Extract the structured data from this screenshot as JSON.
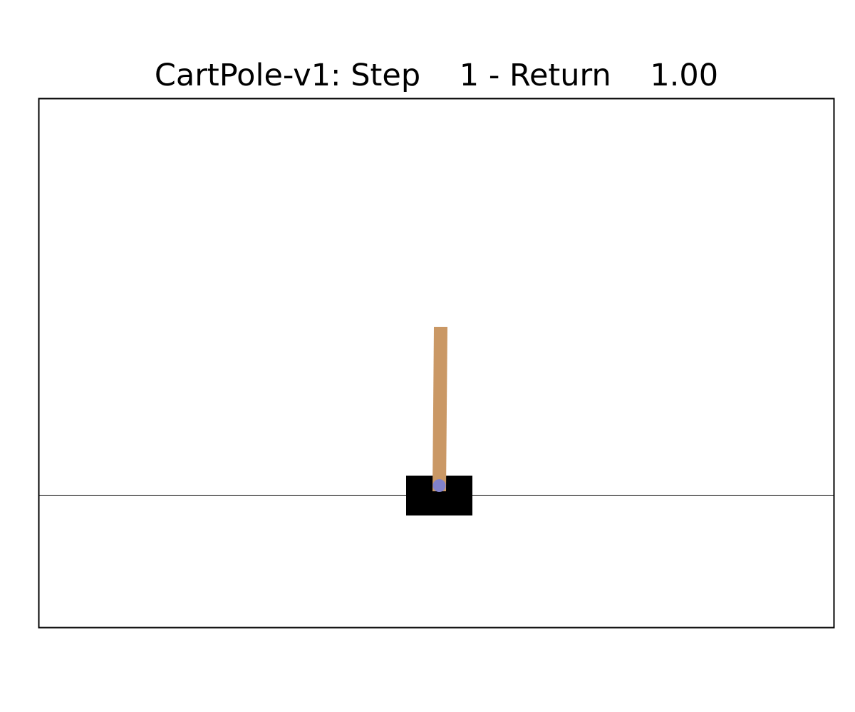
{
  "env_name": "CartPole-v1",
  "step": 1,
  "return_value": "1.00",
  "title": "CartPole-v1: Step    1 - Return    1.00",
  "colors": {
    "frame": "#000000",
    "track": "#000000",
    "cart": "#000000",
    "pole": "#ca9865",
    "axle": "#8181ca",
    "background": "#ffffff"
  }
}
